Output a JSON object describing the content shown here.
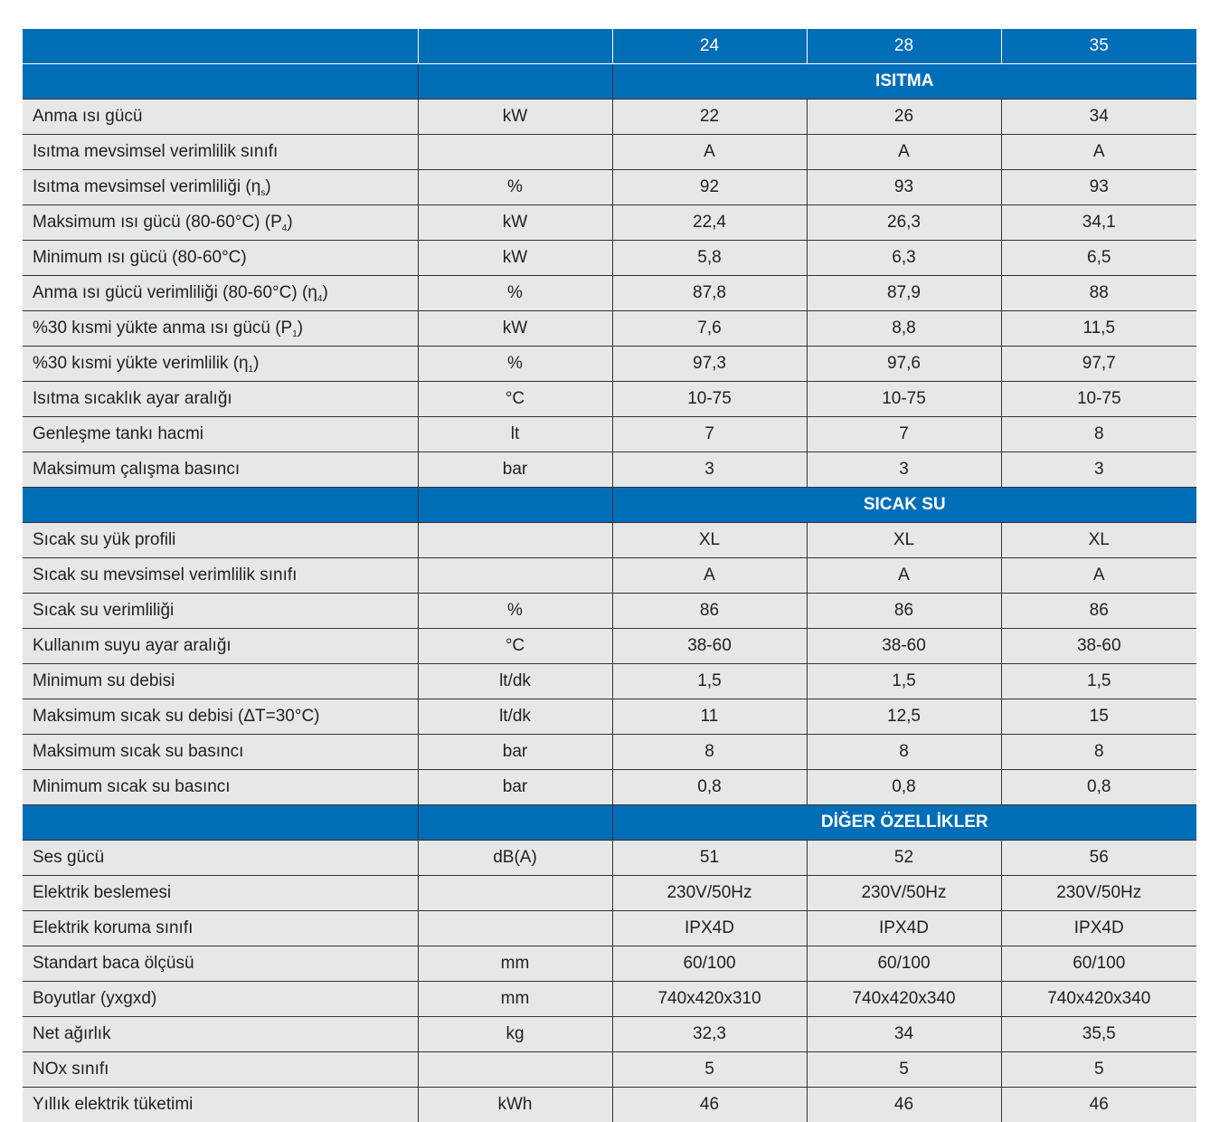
{
  "header": {
    "models": [
      "24",
      "28",
      "35"
    ]
  },
  "sections": [
    {
      "title": "ISITMA",
      "rows": [
        {
          "label": "Anma ısı gücü",
          "unit": "kW",
          "values": [
            "22",
            "26",
            "34"
          ]
        },
        {
          "label": "Isıtma mevsimsel verimlilik sınıfı",
          "unit": "",
          "values": [
            "A",
            "A",
            "A"
          ]
        },
        {
          "label": "Isıtma mevsimsel verimliliği (η",
          "sub": "s",
          "tail": ")",
          "unit": "%",
          "values": [
            "92",
            "93",
            "93"
          ]
        },
        {
          "label": "Maksimum ısı gücü (80-60°C) (P",
          "sub": "4",
          "tail": ")",
          "unit": "kW",
          "values": [
            "22,4",
            "26,3",
            "34,1"
          ]
        },
        {
          "label": "Minimum ısı gücü (80-60°C)",
          "unit": "kW",
          "values": [
            "5,8",
            "6,3",
            "6,5"
          ]
        },
        {
          "label": "Anma ısı gücü verimliliği (80-60°C) (η",
          "sub": "4",
          "tail": ")",
          "unit": "%",
          "values": [
            "87,8",
            "87,9",
            "88"
          ]
        },
        {
          "label": "%30 kısmi yükte anma ısı gücü (P",
          "sub": "1",
          "tail": ")",
          "unit": "kW",
          "values": [
            "7,6",
            "8,8",
            "11,5"
          ]
        },
        {
          "label": "%30 kısmi yükte verimlilik (η",
          "sub": "1",
          "tail": ")",
          "unit": "%",
          "values": [
            "97,3",
            "97,6",
            "97,7"
          ]
        },
        {
          "label": "Isıtma sıcaklık ayar aralığı",
          "unit": "°C",
          "values": [
            "10-75",
            "10-75",
            "10-75"
          ]
        },
        {
          "label": "Genleşme tankı hacmi",
          "unit": "lt",
          "values": [
            "7",
            "7",
            "8"
          ]
        },
        {
          "label": "Maksimum çalışma basıncı",
          "unit": "bar",
          "values": [
            "3",
            "3",
            "3"
          ]
        }
      ]
    },
    {
      "title": "SICAK SU",
      "rows": [
        {
          "label": "Sıcak su yük profili",
          "unit": "",
          "values": [
            "XL",
            "XL",
            "XL"
          ]
        },
        {
          "label": "Sıcak su mevsimsel verimlilik sınıfı",
          "unit": "",
          "values": [
            "A",
            "A",
            "A"
          ]
        },
        {
          "label": "Sıcak su verimliliği",
          "unit": "%",
          "values": [
            "86",
            "86",
            "86"
          ]
        },
        {
          "label": "Kullanım suyu ayar aralığı",
          "unit": "°C",
          "values": [
            "38-60",
            "38-60",
            "38-60"
          ]
        },
        {
          "label": "Minimum su debisi",
          "unit": "lt/dk",
          "values": [
            "1,5",
            "1,5",
            "1,5"
          ]
        },
        {
          "label": "Maksimum sıcak su debisi (ΔT=30°C)",
          "unit": "lt/dk",
          "values": [
            "11",
            "12,5",
            "15"
          ]
        },
        {
          "label": "Maksimum sıcak su basıncı",
          "unit": "bar",
          "values": [
            "8",
            "8",
            "8"
          ]
        },
        {
          "label": "Minimum sıcak su basıncı",
          "unit": "bar",
          "values": [
            "0,8",
            "0,8",
            "0,8"
          ]
        }
      ]
    },
    {
      "title": "DİĞER ÖZELLİKLER",
      "rows": [
        {
          "label": "Ses gücü",
          "unit": "dB(A)",
          "values": [
            "51",
            "52",
            "56"
          ]
        },
        {
          "label": "Elektrik beslemesi",
          "unit": "",
          "values": [
            "230V/50Hz",
            "230V/50Hz",
            "230V/50Hz"
          ]
        },
        {
          "label": "Elektrik koruma sınıfı",
          "unit": "",
          "values": [
            "IPX4D",
            "IPX4D",
            "IPX4D"
          ]
        },
        {
          "label": "Standart baca ölçüsü",
          "unit": "mm",
          "values": [
            "60/100",
            "60/100",
            "60/100"
          ]
        },
        {
          "label": "Boyutlar (yxgxd)",
          "unit": "mm",
          "values": [
            "740x420x310",
            "740x420x340",
            "740x420x340"
          ]
        },
        {
          "label": "Net ağırlık",
          "unit": "kg",
          "values": [
            "32,3",
            "34",
            "35,5"
          ]
        },
        {
          "label": "NOx sınıfı",
          "unit": "",
          "values": [
            "5",
            "5",
            "5"
          ]
        },
        {
          "label": "Yıllık elektrik tüketimi",
          "unit": "kWh",
          "values": [
            "46",
            "46",
            "46"
          ]
        }
      ]
    }
  ]
}
